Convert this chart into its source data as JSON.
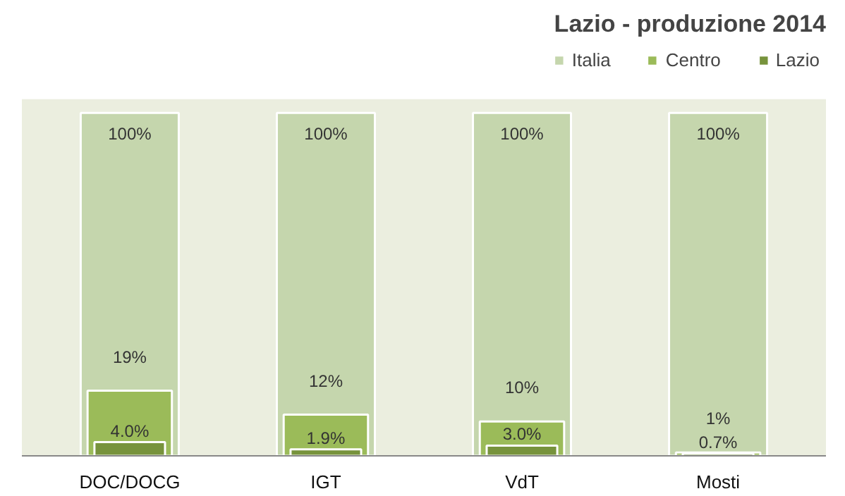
{
  "chart_data": {
    "type": "bar",
    "title": "Lazio - produzione 2014",
    "categories": [
      "DOC/DOCG",
      "IGT",
      "VdT",
      "Mosti"
    ],
    "series": [
      {
        "name": "Italia",
        "color": "#c5d6ad",
        "values": [
          100,
          100,
          100,
          100
        ],
        "value_labels": [
          "100%",
          "100%",
          "100%",
          "100%"
        ]
      },
      {
        "name": "Centro",
        "color": "#9bbb59",
        "values": [
          19,
          12,
          10,
          1
        ],
        "value_labels": [
          "19%",
          "12%",
          "10%",
          "1%"
        ]
      },
      {
        "name": "Lazio",
        "color": "#77933c",
        "values": [
          4.0,
          1.9,
          3.0,
          0.7
        ],
        "value_labels": [
          "4.0%",
          "1.9%",
          "3.0%",
          "0.7%"
        ]
      }
    ],
    "ylim": [
      0,
      100
    ],
    "tick_labels": "x",
    "data_labels": true,
    "legend": "top",
    "grid": false
  }
}
